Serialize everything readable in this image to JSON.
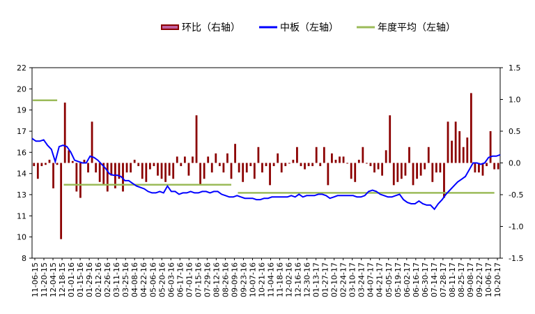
{
  "chart_data": {
    "type": "bar+line",
    "title": "",
    "legend_position": "top",
    "legend": [
      {
        "name": "环比（右轴）",
        "kind": "bar",
        "color": "#8b0000"
      },
      {
        "name": "中板（左轴）",
        "kind": "line",
        "color": "#0000ff"
      },
      {
        "name": "年度平均（左轴）",
        "kind": "line",
        "color": "#9bbb59"
      }
    ],
    "left_axis": {
      "min": 8,
      "max": 22,
      "ticks": [
        "8",
        "10",
        "11",
        "13",
        "14",
        "16",
        "17",
        "19",
        "20",
        "22"
      ],
      "tick_values": [
        8,
        9.56,
        11.11,
        12.67,
        14.22,
        15.78,
        17.33,
        18.89,
        20.44,
        22
      ]
    },
    "right_axis": {
      "min": -1.5,
      "max": 1.5,
      "ticks": [
        "1.5",
        "1.0",
        "0.5",
        "0.0",
        "-0.5",
        "-1.0",
        "-1.5"
      ],
      "tick_values": [
        1.5,
        1.0,
        0.5,
        0.0,
        -0.5,
        -1.0,
        -1.5
      ]
    },
    "x_labels": [
      "11-06-15",
      "11-20-15",
      "12-04-15",
      "12-18-15",
      "01-01-16",
      "01-15-16",
      "01-29-16",
      "02-12-16",
      "02-26-16",
      "03-11-16",
      "03-25-16",
      "04-08-16",
      "04-22-16",
      "05-06-16",
      "05-20-16",
      "06-03-16",
      "06-17-16",
      "07-01-16",
      "07-15-16",
      "07-29-16",
      "08-12-16",
      "08-26-16",
      "09-09-16",
      "09-23-16",
      "10-07-16",
      "10-21-16",
      "11-04-16",
      "11-18-16",
      "12-02-16",
      "12-16-16",
      "12-30-16",
      "01-13-17",
      "01-27-17",
      "02-10-17",
      "02-24-17",
      "03-10-17",
      "03-24-17",
      "04-07-17",
      "04-21-17",
      "05-05-17",
      "05-19-17",
      "06-02-17",
      "06-16-17",
      "06-30-17",
      "07-14-17",
      "07-28-17",
      "08-11-17",
      "08-25-17",
      "09-08-17",
      "09-22-17",
      "10-06-17",
      "10-20-17"
    ],
    "series": [
      {
        "name": "中板（左轴）",
        "axis": "left",
        "type": "line",
        "color": "#0000ff",
        "values": [
          16.8,
          16.6,
          16.6,
          16.7,
          16.3,
          16.0,
          15.1,
          16.2,
          16.3,
          16.2,
          15.8,
          15.2,
          15.1,
          15.0,
          15.0,
          15.5,
          15.4,
          15.2,
          14.9,
          14.6,
          14.2,
          14.1,
          14.1,
          14.0,
          13.7,
          13.7,
          13.5,
          13.3,
          13.2,
          13.1,
          12.9,
          12.8,
          12.8,
          12.9,
          12.8,
          13.3,
          12.9,
          12.9,
          12.7,
          12.8,
          12.8,
          12.9,
          12.8,
          12.8,
          12.9,
          12.9,
          12.8,
          12.9,
          12.9,
          12.7,
          12.6,
          12.5,
          12.5,
          12.6,
          12.5,
          12.4,
          12.4,
          12.4,
          12.3,
          12.3,
          12.4,
          12.4,
          12.5,
          12.5,
          12.5,
          12.5,
          12.5,
          12.6,
          12.5,
          12.7,
          12.5,
          12.6,
          12.6,
          12.6,
          12.7,
          12.7,
          12.6,
          12.4,
          12.5,
          12.6,
          12.6,
          12.6,
          12.6,
          12.6,
          12.5,
          12.5,
          12.6,
          12.9,
          13.0,
          12.9,
          12.7,
          12.6,
          12.5,
          12.5,
          12.6,
          12.7,
          12.3,
          12.1,
          12.0,
          12.0,
          12.2,
          12.0,
          11.9,
          11.9,
          11.6,
          12.0,
          12.3,
          12.7,
          13.0,
          13.3,
          13.6,
          13.8,
          14.0,
          14.5,
          15.0,
          15.0,
          14.9,
          15.0,
          15.4,
          15.5,
          15.5,
          15.6
        ]
      },
      {
        "name": "年度平均（左轴）",
        "axis": "left",
        "type": "segments",
        "color": "#9bbb59",
        "segments": [
          {
            "from": 0,
            "to": 6,
            "value": 19.6
          },
          {
            "from": 8,
            "to": 51,
            "value": 13.4
          },
          {
            "from": 53,
            "to": 119,
            "value": 12.8
          }
        ]
      },
      {
        "name": "环比（右轴）",
        "axis": "right",
        "type": "bar",
        "color": "#8b0000",
        "values": [
          -0.05,
          -0.25,
          -0.05,
          -0.03,
          0.05,
          -0.4,
          -0.03,
          -1.2,
          0.95,
          0.2,
          0.03,
          -0.45,
          -0.55,
          0.05,
          -0.15,
          0.65,
          -0.15,
          -0.3,
          -0.35,
          -0.45,
          -0.2,
          -0.4,
          -0.25,
          -0.45,
          -0.15,
          -0.15,
          0.05,
          -0.05,
          -0.25,
          -0.3,
          -0.1,
          -0.05,
          -0.2,
          -0.25,
          -0.3,
          -0.2,
          -0.25,
          0.1,
          -0.05,
          0.1,
          -0.2,
          0.1,
          0.75,
          -0.35,
          -0.25,
          0.1,
          -0.15,
          0.15,
          -0.05,
          -0.15,
          0.15,
          -0.25,
          0.3,
          -0.15,
          -0.3,
          -0.15,
          -0.05,
          -0.25,
          0.25,
          -0.15,
          -0.05,
          -0.35,
          -0.05,
          0.15,
          -0.15,
          -0.05,
          0.0,
          0.05,
          0.25,
          -0.05,
          -0.1,
          -0.05,
          -0.05,
          0.25,
          -0.05,
          0.25,
          -0.35,
          0.15,
          0.05,
          0.1,
          0.1,
          0.0,
          -0.25,
          -0.3,
          0.05,
          0.25,
          0.0,
          -0.05,
          -0.15,
          -0.1,
          -0.2,
          0.2,
          0.75,
          -0.35,
          -0.3,
          -0.25,
          -0.2,
          0.25,
          -0.35,
          -0.25,
          -0.2,
          -0.1,
          0.25,
          -0.3,
          -0.15,
          -0.15,
          -0.55,
          0.65,
          0.35,
          0.65,
          0.5,
          0.25,
          0.4,
          1.1,
          -0.15,
          -0.15,
          -0.2,
          -0.05,
          0.5,
          -0.1,
          -0.1
        ]
      }
    ]
  }
}
